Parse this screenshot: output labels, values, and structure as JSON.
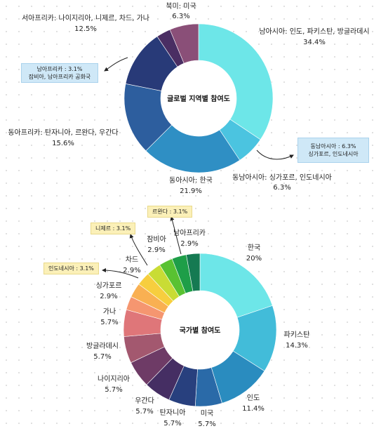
{
  "chart_data": [
    {
      "type": "pie",
      "title": "글로벌 지역별 참여도",
      "slices": [
        {
          "label": "남아시아: 인도, 파키스탄, 방글라데시",
          "value": 34.4,
          "value_label": "34.4%",
          "color": "#6de6e8"
        },
        {
          "label": "동남아시아: 싱가포르, 인도네시아",
          "value": 6.3,
          "value_label": "6.3%",
          "color": "#4bc4e0"
        },
        {
          "label": "동아시아: 한국",
          "value": 21.9,
          "value_label": "21.9%",
          "color": "#2f8fc4"
        },
        {
          "label": "동아프리카: 탄자니아, 르완다, 우간다",
          "value": 15.6,
          "value_label": "15.6%",
          "color": "#2d5e9e"
        },
        {
          "label": "서아프리카: 나이지리아, 니제르, 차드, 가나",
          "value": 12.5,
          "value_label": "12.5%",
          "color": "#283a78"
        },
        {
          "label": "남아프리카",
          "value": 3.1,
          "value_label": "",
          "color": "#4a2e63"
        },
        {
          "label": "북미: 미국",
          "value": 6.3,
          "value_label": "6.3%",
          "color": "#8a4f78"
        }
      ],
      "callouts": [
        {
          "line1": "남아프리카 : 3.1%",
          "line2": "잠비아, 남아프리카 공화국"
        },
        {
          "line1": "동남아시아 : 6.3%",
          "line2": "싱가포르, 인도네시아"
        }
      ]
    },
    {
      "type": "pie",
      "title": "국가별 참여도",
      "slices": [
        {
          "label": "한국",
          "value": 20,
          "value_label": "20%",
          "color": "#6de6e8"
        },
        {
          "label": "파키스탄",
          "value": 14.3,
          "value_label": "14.3%",
          "color": "#42bcd9"
        },
        {
          "label": "인도",
          "value": 11.4,
          "value_label": "11.4%",
          "color": "#2a8cbf"
        },
        {
          "label": "미국",
          "value": 5.7,
          "value_label": "5.7%",
          "color": "#2a6aa8"
        },
        {
          "label": "탄자니아",
          "value": 5.7,
          "value_label": "5.7%",
          "color": "#28407e"
        },
        {
          "label": "우간다",
          "value": 5.7,
          "value_label": "5.7%",
          "color": "#452e63"
        },
        {
          "label": "나이지리아",
          "value": 5.7,
          "value_label": "5.7%",
          "color": "#6e3b66"
        },
        {
          "label": "방글라데시",
          "value": 5.7,
          "value_label": "5.7%",
          "color": "#a3586f"
        },
        {
          "label": "가나",
          "value": 5.7,
          "value_label": "5.7%",
          "color": "#df7679"
        },
        {
          "label": "싱가포르",
          "value": 2.9,
          "value_label": "2.9%",
          "color": "#f59670"
        },
        {
          "label": "인도네시아",
          "value": 3.1,
          "value_label": "",
          "color": "#f9b052"
        },
        {
          "label": "차드",
          "value": 2.9,
          "value_label": "2.9%",
          "color": "#f7ce3e"
        },
        {
          "label": "니제르",
          "value": 3.1,
          "value_label": "",
          "color": "#c9dc35"
        },
        {
          "label": "잠비아",
          "value": 2.9,
          "value_label": "2.9%",
          "color": "#59c232"
        },
        {
          "label": "르완다",
          "value": 3.1,
          "value_label": "",
          "color": "#1e9e48"
        },
        {
          "label": "남아프리카",
          "value": 2.9,
          "value_label": "2.9%",
          "color": "#157a52"
        }
      ],
      "callouts": [
        {
          "line1": "르완다 : 3.1%"
        },
        {
          "line1": "니제르 : 3.1%"
        },
        {
          "line1": "인도네시아 : 3.1%"
        }
      ]
    }
  ]
}
